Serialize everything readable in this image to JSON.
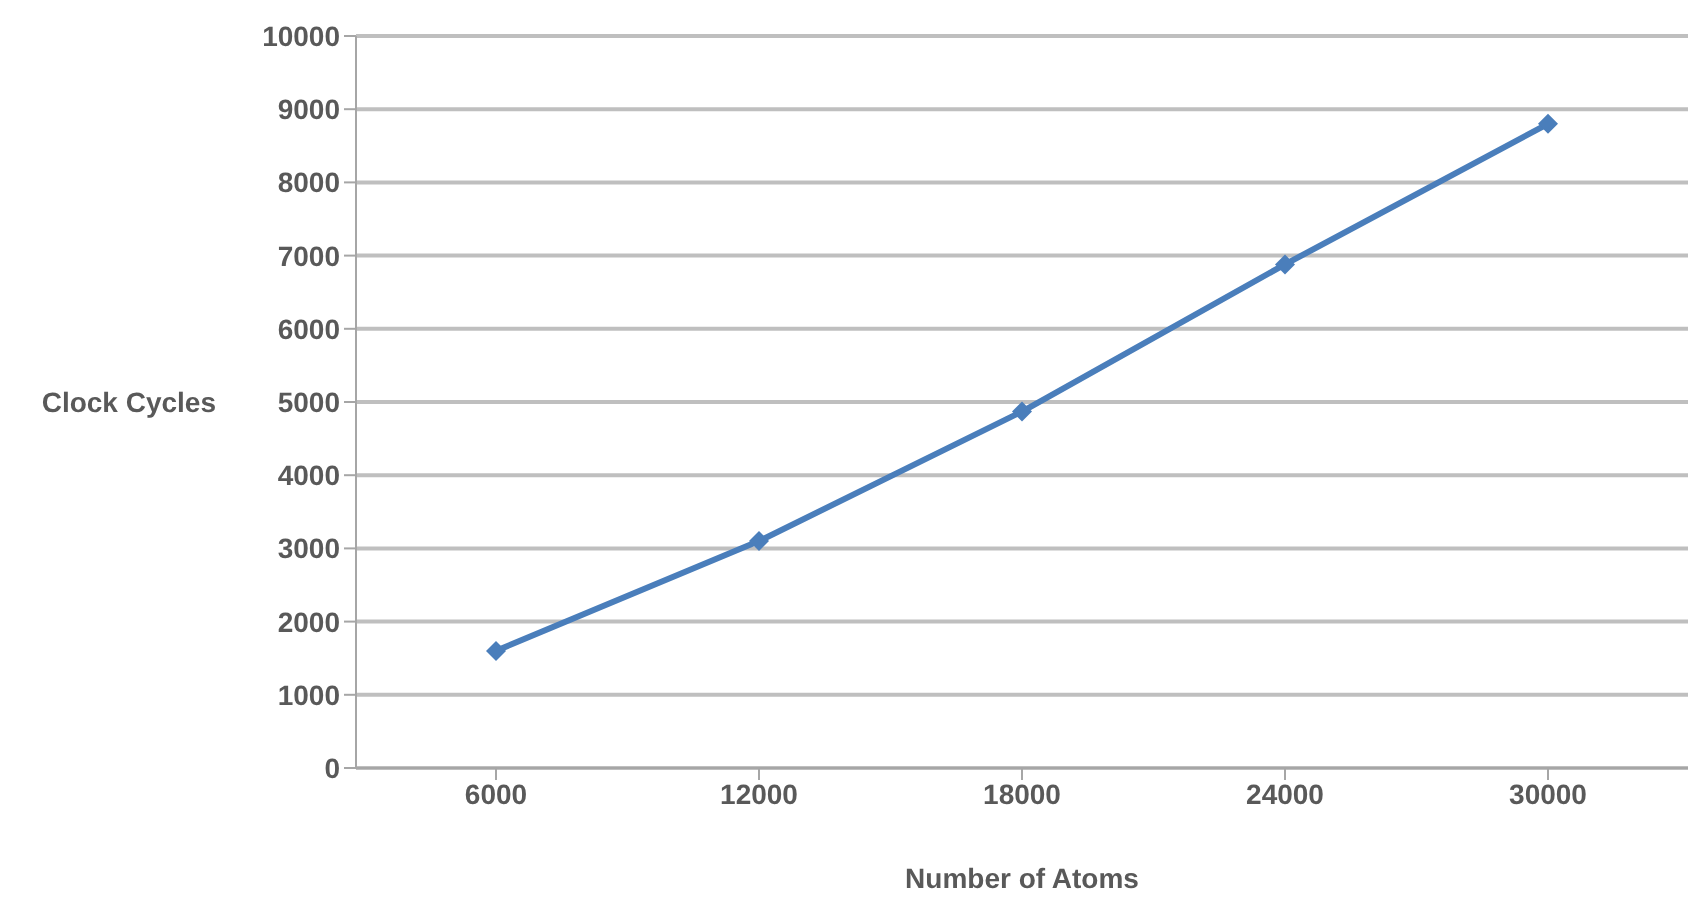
{
  "chart_data": {
    "type": "line",
    "xlabel": "Number of Atoms",
    "ylabel": "Clock Cycles",
    "categories": [
      "6000",
      "12000",
      "18000",
      "24000",
      "30000"
    ],
    "series": [
      {
        "color": "#4a7ebb",
        "values": [
          1600,
          3100,
          4870,
          6880,
          8800
        ]
      }
    ],
    "ylim": [
      0,
      10000
    ],
    "yticks": [
      0,
      1000,
      2000,
      3000,
      4000,
      5000,
      6000,
      7000,
      8000,
      9000,
      10000
    ],
    "grid": "y",
    "marker": "diamond",
    "legend": false
  }
}
